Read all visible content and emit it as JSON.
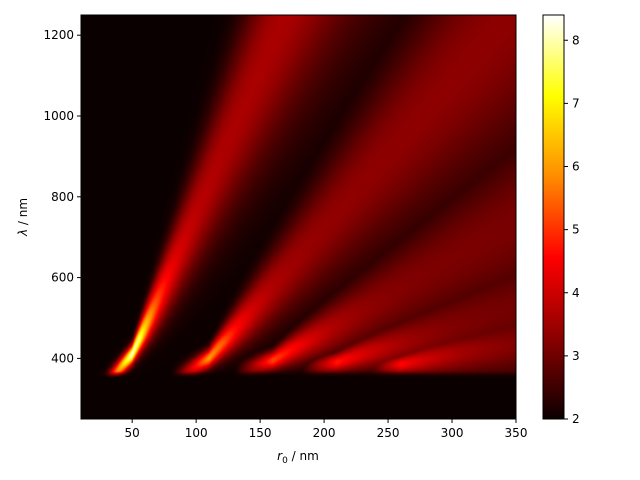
{
  "chart_data": {
    "type": "heatmap",
    "title": "",
    "xlabel": {
      "symbol": "r",
      "subscript": "0",
      "unit": " / nm"
    },
    "ylabel": {
      "symbol": "λ",
      "unit": " / nm"
    },
    "xlim": [
      10,
      350
    ],
    "ylim": [
      250,
      1250
    ],
    "x_ticks": [
      50,
      100,
      150,
      200,
      250,
      300,
      350
    ],
    "y_ticks": [
      400,
      600,
      800,
      1000,
      1200
    ],
    "colormap": "hot",
    "colormap_stops": [
      "#0b0000",
      "#8b0000",
      "#ff0000",
      "#ff8c00",
      "#ffff00",
      "#ffffff"
    ],
    "colorbar": {
      "min": 2.0,
      "max": 8.4,
      "ticks": [
        2,
        3,
        4,
        5,
        6,
        7,
        8
      ]
    },
    "background_value": 2.0,
    "features": [
      {
        "name": "cutoff_edge",
        "lambda_nm": 360,
        "x_start_nm": 20,
        "x_end_nm": 350
      },
      {
        "name": "mode_1",
        "peak": {
          "x": 50,
          "y": 410,
          "value": 8.2
        },
        "slope_nm_per_nm": 7.0,
        "far_value": 3.6
      },
      {
        "name": "mode_2",
        "peak": {
          "x": 110,
          "y": 400,
          "value": 6.0
        },
        "slope_nm_per_nm": 3.6,
        "far_value": 3.3
      },
      {
        "name": "mode_3",
        "peak": {
          "x": 160,
          "y": 395,
          "value": 5.2
        },
        "slope_nm_per_nm": 1.8,
        "far_value": 3.1
      },
      {
        "name": "mode_4",
        "peak": {
          "x": 210,
          "y": 390,
          "value": 4.8
        },
        "slope_nm_per_nm": 1.0,
        "far_value": 3.0
      },
      {
        "name": "mode_5",
        "peak": {
          "x": 260,
          "y": 385,
          "value": 4.6
        },
        "slope_nm_per_nm": 0.6,
        "far_value": 3.0
      }
    ]
  }
}
